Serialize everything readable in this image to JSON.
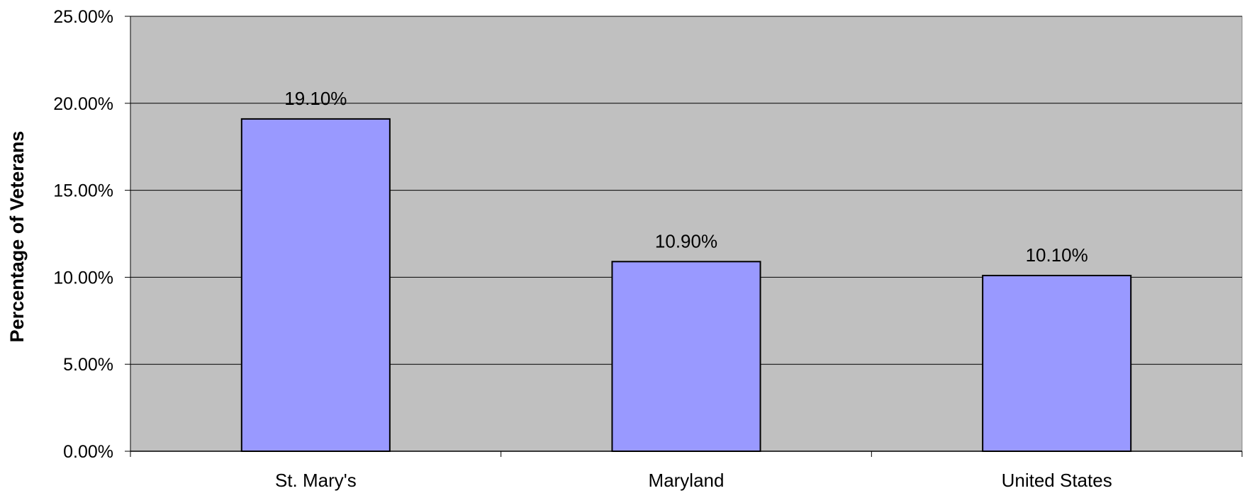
{
  "chart_data": {
    "type": "bar",
    "title": "",
    "xlabel": "",
    "ylabel": "Percentage of Veterans",
    "categories": [
      "St. Mary's",
      "Maryland",
      "United States"
    ],
    "values": [
      19.1,
      10.9,
      10.1
    ],
    "value_labels": [
      "19.10%",
      "10.90%",
      "10.10%"
    ],
    "ylim": [
      0,
      25
    ],
    "y_ticks": [
      0,
      5,
      10,
      15,
      20,
      25
    ],
    "y_tick_labels": [
      "0.00%",
      "5.00%",
      "10.00%",
      "15.00%",
      "20.00%",
      "25.00%"
    ],
    "grid": true,
    "legend": "none",
    "colors": {
      "bar_fill": "#9999ff",
      "bar_stroke": "#000000",
      "plot_background": "#c0c0c0",
      "gridline": "#000000"
    }
  }
}
